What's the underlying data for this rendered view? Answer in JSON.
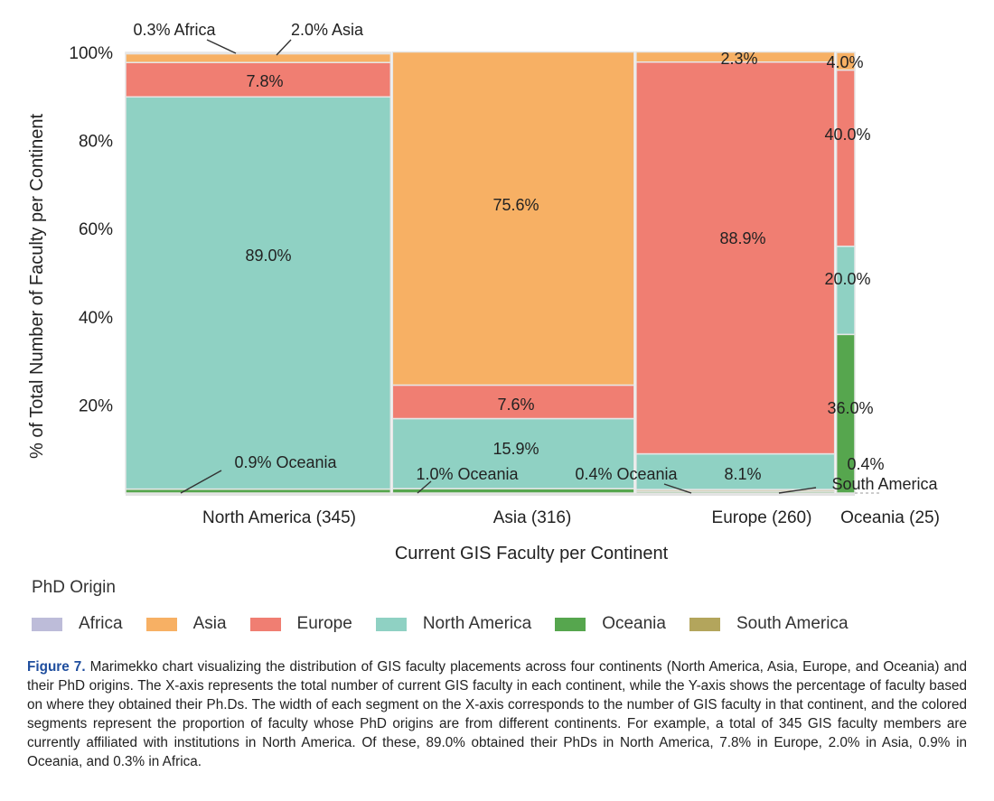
{
  "chart_data": {
    "type": "marimekko",
    "xlabel": "Current GIS Faculty per Continent",
    "ylabel": "% of Total Number of Faculty per Continent",
    "y_ticks": [
      "20%",
      "40%",
      "60%",
      "80%",
      "100%"
    ],
    "y_tick_values": [
      20,
      40,
      60,
      80,
      100
    ],
    "ylim": [
      0,
      100
    ],
    "categories": [
      {
        "name": "North America",
        "count": 345,
        "label": "North America (345)"
      },
      {
        "name": "Asia",
        "count": 316,
        "label": "Asia (316)"
      },
      {
        "name": "Europe",
        "count": 260,
        "label": "Europe (260)"
      },
      {
        "name": "Oceania",
        "count": 25,
        "label": "Oceania (25)"
      }
    ],
    "series": [
      {
        "name": "Oceania",
        "values": [
          0.9,
          1.0,
          0.4,
          36.0
        ]
      },
      {
        "name": "South America",
        "values": [
          0,
          0,
          0.4,
          0
        ]
      },
      {
        "name": "North America",
        "values": [
          89.0,
          15.9,
          8.1,
          20.0
        ]
      },
      {
        "name": "Europe",
        "values": [
          7.8,
          7.6,
          88.9,
          40.0
        ]
      },
      {
        "name": "Asia",
        "values": [
          2.0,
          75.6,
          2.3,
          4.0
        ]
      },
      {
        "name": "Africa",
        "values": [
          0.3,
          0,
          0,
          0
        ]
      }
    ],
    "data_labels": [
      {
        "text": "0.3% Africa",
        "col": 0,
        "series": "Africa"
      },
      {
        "text": "2.0% Asia",
        "col": 0,
        "series": "Asia"
      },
      {
        "text": "7.8%",
        "col": 0,
        "series": "Europe"
      },
      {
        "text": "89.0%",
        "col": 0,
        "series": "North America"
      },
      {
        "text": "0.9% Oceania",
        "col": 0,
        "series": "Oceania"
      },
      {
        "text": "75.6%",
        "col": 1,
        "series": "Asia"
      },
      {
        "text": "7.6%",
        "col": 1,
        "series": "Europe"
      },
      {
        "text": "15.9%",
        "col": 1,
        "series": "North America"
      },
      {
        "text": "1.0% Oceania",
        "col": 1,
        "series": "Oceania"
      },
      {
        "text": "2.3%",
        "col": 2,
        "series": "Asia"
      },
      {
        "text": "88.9%",
        "col": 2,
        "series": "Europe"
      },
      {
        "text": "8.1%",
        "col": 2,
        "series": "North America"
      },
      {
        "text": "0.4% Oceania",
        "col": 2,
        "series": "Oceania"
      },
      {
        "text": "4.0%",
        "col": 3,
        "series": "Asia"
      },
      {
        "text": "40.0%",
        "col": 3,
        "series": "Europe"
      },
      {
        "text": "20.0%",
        "col": 3,
        "series": "North America"
      },
      {
        "text": "36.0%",
        "col": 3,
        "series": "Oceania"
      },
      {
        "text": "0.4%",
        "col": 3,
        "series": "South America"
      },
      {
        "text": "South America",
        "col": 3,
        "series": "South America"
      }
    ],
    "legend_position": "bottom-left"
  },
  "legend": {
    "title": "PhD Origin",
    "items": [
      {
        "name": "Africa",
        "color": "#bdbcd9"
      },
      {
        "name": "Asia",
        "color": "#f7b064"
      },
      {
        "name": "Europe",
        "color": "#f07e72"
      },
      {
        "name": "North America",
        "color": "#8fd1c3"
      },
      {
        "name": "Oceania",
        "color": "#56a64e"
      },
      {
        "name": "South America",
        "color": "#b3a55c"
      }
    ]
  },
  "caption": {
    "label": "Figure 7.",
    "text": "Marimekko chart visualizing the distribution of GIS faculty placements across four continents (North America, Asia, Europe, and Oceania) and their PhD origins. The X-axis represents the total number of current GIS faculty in each continent, while the Y-axis shows the percentage of faculty based on where they obtained their Ph.Ds. The width of each segment on the X-axis corresponds to the number of GIS faculty in that continent, and the colored segments represent the proportion of faculty whose PhD origins are from different continents. For example, a total of 345 GIS faculty members are currently affiliated with institutions in North America. Of these, 89.0% obtained their PhDs in North America, 7.8% in Europe, 2.0% in Asia, 0.9% in Oceania, and 0.3% in Africa."
  }
}
